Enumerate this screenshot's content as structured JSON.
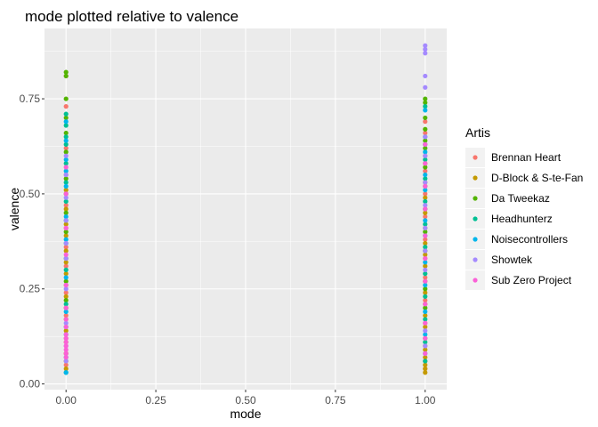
{
  "chart_data": {
    "type": "scatter",
    "title": "mode plotted relative to valence",
    "xlabel": "mode",
    "ylabel": "valence",
    "xlim": [
      -0.06,
      1.06
    ],
    "ylim": [
      -0.015,
      0.935
    ],
    "xticks": [
      0.0,
      0.25,
      0.5,
      0.75,
      1.0
    ],
    "xtick_labels": [
      "0.00",
      "0.25",
      "0.50",
      "0.75",
      "1.00"
    ],
    "yticks": [
      0.0,
      0.25,
      0.5,
      0.75
    ],
    "ytick_labels": [
      "0.00",
      "0.25",
      "0.50",
      "0.75"
    ],
    "grid": true,
    "legend": {
      "title": "Artis",
      "placement": "right"
    },
    "series": [
      {
        "name": "Brennan Heart",
        "color": "#F8766D",
        "points": [
          [
            0,
            0.81
          ],
          [
            0,
            0.73
          ],
          [
            0,
            0.62
          ],
          [
            0,
            0.55
          ],
          [
            0,
            0.47
          ],
          [
            0,
            0.41
          ],
          [
            0,
            0.36
          ],
          [
            0,
            0.31
          ],
          [
            0,
            0.24
          ],
          [
            0,
            0.18
          ],
          [
            0,
            0.12
          ],
          [
            0,
            0.08
          ],
          [
            0,
            0.05
          ],
          [
            1,
            0.69
          ],
          [
            1,
            0.66
          ],
          [
            1,
            0.6
          ],
          [
            1,
            0.56
          ],
          [
            1,
            0.5
          ],
          [
            1,
            0.44
          ],
          [
            1,
            0.38
          ],
          [
            1,
            0.33
          ],
          [
            1,
            0.28
          ],
          [
            1,
            0.22
          ],
          [
            1,
            0.16
          ],
          [
            1,
            0.1
          ],
          [
            1,
            0.06
          ],
          [
            1,
            0.04
          ]
        ]
      },
      {
        "name": "D-Block & S-te-Fan",
        "color": "#C49A00",
        "points": [
          [
            0,
            0.51
          ],
          [
            0,
            0.46
          ],
          [
            0,
            0.42
          ],
          [
            0,
            0.39
          ],
          [
            0,
            0.35
          ],
          [
            0,
            0.32
          ],
          [
            0,
            0.29
          ],
          [
            0,
            0.26
          ],
          [
            0,
            0.23
          ],
          [
            0,
            0.2
          ],
          [
            0,
            0.17
          ],
          [
            0,
            0.14
          ],
          [
            0,
            0.11
          ],
          [
            0,
            0.08
          ],
          [
            0,
            0.06
          ],
          [
            0,
            0.04
          ],
          [
            1,
            0.58
          ],
          [
            1,
            0.53
          ],
          [
            1,
            0.49
          ],
          [
            1,
            0.45
          ],
          [
            1,
            0.41
          ],
          [
            1,
            0.37
          ],
          [
            1,
            0.34
          ],
          [
            1,
            0.31
          ],
          [
            1,
            0.27
          ],
          [
            1,
            0.24
          ],
          [
            1,
            0.21
          ],
          [
            1,
            0.18
          ],
          [
            1,
            0.15
          ],
          [
            1,
            0.12
          ],
          [
            1,
            0.09
          ],
          [
            1,
            0.07
          ],
          [
            1,
            0.05
          ],
          [
            1,
            0.04
          ],
          [
            1,
            0.03
          ]
        ]
      },
      {
        "name": "Da Tweekaz",
        "color": "#53B400",
        "points": [
          [
            0,
            0.82
          ],
          [
            0,
            0.81
          ],
          [
            0,
            0.75
          ],
          [
            0,
            0.7
          ],
          [
            0,
            0.66
          ],
          [
            0,
            0.61
          ],
          [
            0,
            0.54
          ],
          [
            0,
            0.5
          ],
          [
            0,
            0.45
          ],
          [
            0,
            0.4
          ],
          [
            0,
            0.33
          ],
          [
            0,
            0.27
          ],
          [
            0,
            0.22
          ],
          [
            1,
            0.75
          ],
          [
            1,
            0.74
          ],
          [
            1,
            0.7
          ],
          [
            1,
            0.67
          ],
          [
            1,
            0.64
          ],
          [
            1,
            0.62
          ],
          [
            1,
            0.57
          ],
          [
            1,
            0.52
          ],
          [
            1,
            0.46
          ],
          [
            1,
            0.4
          ],
          [
            1,
            0.35
          ],
          [
            1,
            0.25
          ],
          [
            1,
            0.2
          ]
        ]
      },
      {
        "name": "Headhunterz",
        "color": "#00C094",
        "points": [
          [
            0,
            0.71
          ],
          [
            0,
            0.68
          ],
          [
            0,
            0.65
          ],
          [
            0,
            0.63
          ],
          [
            0,
            0.58
          ],
          [
            0,
            0.53
          ],
          [
            0,
            0.48
          ],
          [
            0,
            0.43
          ],
          [
            0,
            0.37
          ],
          [
            0,
            0.3
          ],
          [
            0,
            0.21
          ],
          [
            0,
            0.15
          ],
          [
            0,
            0.03
          ],
          [
            1,
            0.73
          ],
          [
            1,
            0.63
          ],
          [
            1,
            0.59
          ],
          [
            1,
            0.54
          ],
          [
            1,
            0.48
          ],
          [
            1,
            0.42
          ],
          [
            1,
            0.36
          ],
          [
            1,
            0.29
          ],
          [
            1,
            0.23
          ],
          [
            1,
            0.17
          ],
          [
            1,
            0.11
          ],
          [
            1,
            0.06
          ]
        ]
      },
      {
        "name": "Noisecontrollers",
        "color": "#00B6EB",
        "points": [
          [
            0,
            0.69
          ],
          [
            0,
            0.64
          ],
          [
            0,
            0.59
          ],
          [
            0,
            0.56
          ],
          [
            0,
            0.52
          ],
          [
            0,
            0.44
          ],
          [
            0,
            0.38
          ],
          [
            0,
            0.28
          ],
          [
            0,
            0.19
          ],
          [
            0,
            0.13
          ],
          [
            0,
            0.07
          ],
          [
            0,
            0.03
          ],
          [
            1,
            0.72
          ],
          [
            1,
            0.65
          ],
          [
            1,
            0.61
          ],
          [
            1,
            0.55
          ],
          [
            1,
            0.51
          ],
          [
            1,
            0.43
          ],
          [
            1,
            0.39
          ],
          [
            1,
            0.32
          ],
          [
            1,
            0.26
          ],
          [
            1,
            0.19
          ],
          [
            1,
            0.13
          ],
          [
            1,
            0.08
          ]
        ]
      },
      {
        "name": "Showtek",
        "color": "#A58AFF",
        "points": [
          [
            0,
            0.6
          ],
          [
            0,
            0.55
          ],
          [
            0,
            0.49
          ],
          [
            0,
            0.43
          ],
          [
            0,
            0.37
          ],
          [
            0,
            0.33
          ],
          [
            0,
            0.25
          ],
          [
            0,
            0.16
          ],
          [
            0,
            0.1
          ],
          [
            0,
            0.06
          ],
          [
            1,
            0.89
          ],
          [
            1,
            0.88
          ],
          [
            1,
            0.87
          ],
          [
            1,
            0.81
          ],
          [
            1,
            0.78
          ],
          [
            1,
            0.65
          ],
          [
            1,
            0.6
          ],
          [
            1,
            0.53
          ],
          [
            1,
            0.47
          ],
          [
            1,
            0.41
          ],
          [
            1,
            0.35
          ],
          [
            1,
            0.3
          ],
          [
            1,
            0.14
          ],
          [
            1,
            0.1
          ]
        ]
      },
      {
        "name": "Sub Zero Project",
        "color": "#FB61D7",
        "points": [
          [
            0,
            0.57
          ],
          [
            0,
            0.5
          ],
          [
            0,
            0.41
          ],
          [
            0,
            0.34
          ],
          [
            0,
            0.26
          ],
          [
            0,
            0.2
          ],
          [
            0,
            0.17
          ],
          [
            0,
            0.15
          ],
          [
            0,
            0.13
          ],
          [
            0,
            0.12
          ],
          [
            0,
            0.11
          ],
          [
            0,
            0.1
          ],
          [
            0,
            0.09
          ],
          [
            0,
            0.08
          ],
          [
            0,
            0.07
          ],
          [
            1,
            0.63
          ],
          [
            1,
            0.58
          ],
          [
            1,
            0.52
          ],
          [
            1,
            0.46
          ],
          [
            1,
            0.39
          ],
          [
            1,
            0.33
          ],
          [
            1,
            0.27
          ],
          [
            1,
            0.21
          ],
          [
            1,
            0.16
          ],
          [
            1,
            0.12
          ],
          [
            1,
            0.08
          ]
        ]
      }
    ]
  },
  "colors": {
    "panel_bg": "#EBEBEB",
    "grid_major": "#FFFFFF",
    "legend_key_bg": "#F2F2F2"
  }
}
